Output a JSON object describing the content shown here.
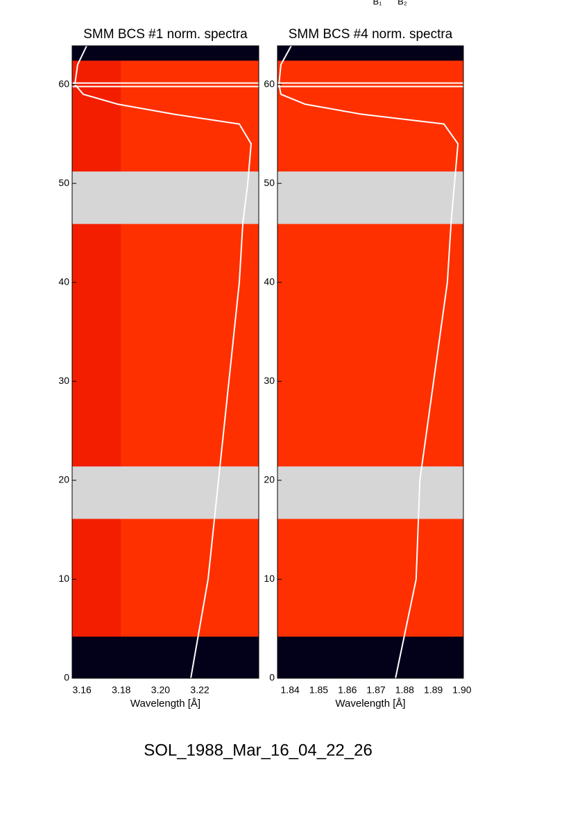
{
  "top_labels": [
    "B₁",
    "B₂"
  ],
  "footer": "SOL_1988_Mar_16_04_22_26",
  "chart_data": [
    {
      "type": "spectra",
      "title": "SMM BCS #1 norm. spectra",
      "xlabel": "Wavelength [Å]",
      "xlim": [
        3.155,
        3.25
      ],
      "xticks": [
        3.16,
        3.18,
        {
          "value": 3.2,
          "label": "3.20"
        },
        3.22
      ],
      "ylim": [
        0,
        63.9
      ],
      "yticks": [
        0,
        10,
        20,
        30,
        40,
        50,
        60
      ],
      "no_data": [
        [
          0,
          4.2
        ],
        [
          62.4,
          63.9
        ]
      ],
      "gaps": [
        [
          16.1,
          21.4
        ],
        [
          45.9,
          51.2
        ]
      ],
      "color": "#ff3000",
      "profile_color": "#ffffff",
      "profile": {
        "y": [
          0,
          10,
          20,
          30,
          40,
          46,
          50,
          54,
          56,
          57,
          58,
          59,
          60,
          62,
          63.9
        ],
        "x": [
          3.2154,
          3.2242,
          3.2295,
          3.2348,
          3.2401,
          3.2419,
          3.2444,
          3.2461,
          3.2401,
          3.2066,
          3.1783,
          3.1607,
          3.1564,
          3.1578,
          3.1624
        ]
      }
    },
    {
      "type": "spectra",
      "title": "SMM BCS #4 norm. spectra",
      "xlabel": "Wavelength [Å]",
      "xlim": [
        1.8356,
        1.9005
      ],
      "xticks": [
        1.84,
        1.85,
        1.86,
        1.87,
        1.88,
        1.89,
        {
          "value": 1.9,
          "label": "1.90"
        }
      ],
      "ylim": [
        0,
        63.9
      ],
      "yticks": [
        0,
        10,
        20,
        30,
        40,
        50,
        60
      ],
      "no_data": [
        [
          0,
          4.2
        ],
        [
          62.4,
          63.9
        ]
      ],
      "gaps": [
        [
          16.1,
          21.4
        ],
        [
          45.9,
          51.2
        ]
      ],
      "color": "#ff3000",
      "profile_color": "#ffffff",
      "profile": {
        "y": [
          0,
          10,
          20,
          30,
          40,
          46,
          50,
          54,
          56,
          57,
          58,
          59,
          60,
          62,
          63.9
        ],
        "x": [
          1.8768,
          1.884,
          1.8853,
          1.8901,
          1.8949,
          1.8962,
          1.8974,
          1.8986,
          1.8937,
          1.8647,
          1.8453,
          1.8368,
          1.8361,
          1.8368,
          1.8404
        ]
      }
    }
  ]
}
